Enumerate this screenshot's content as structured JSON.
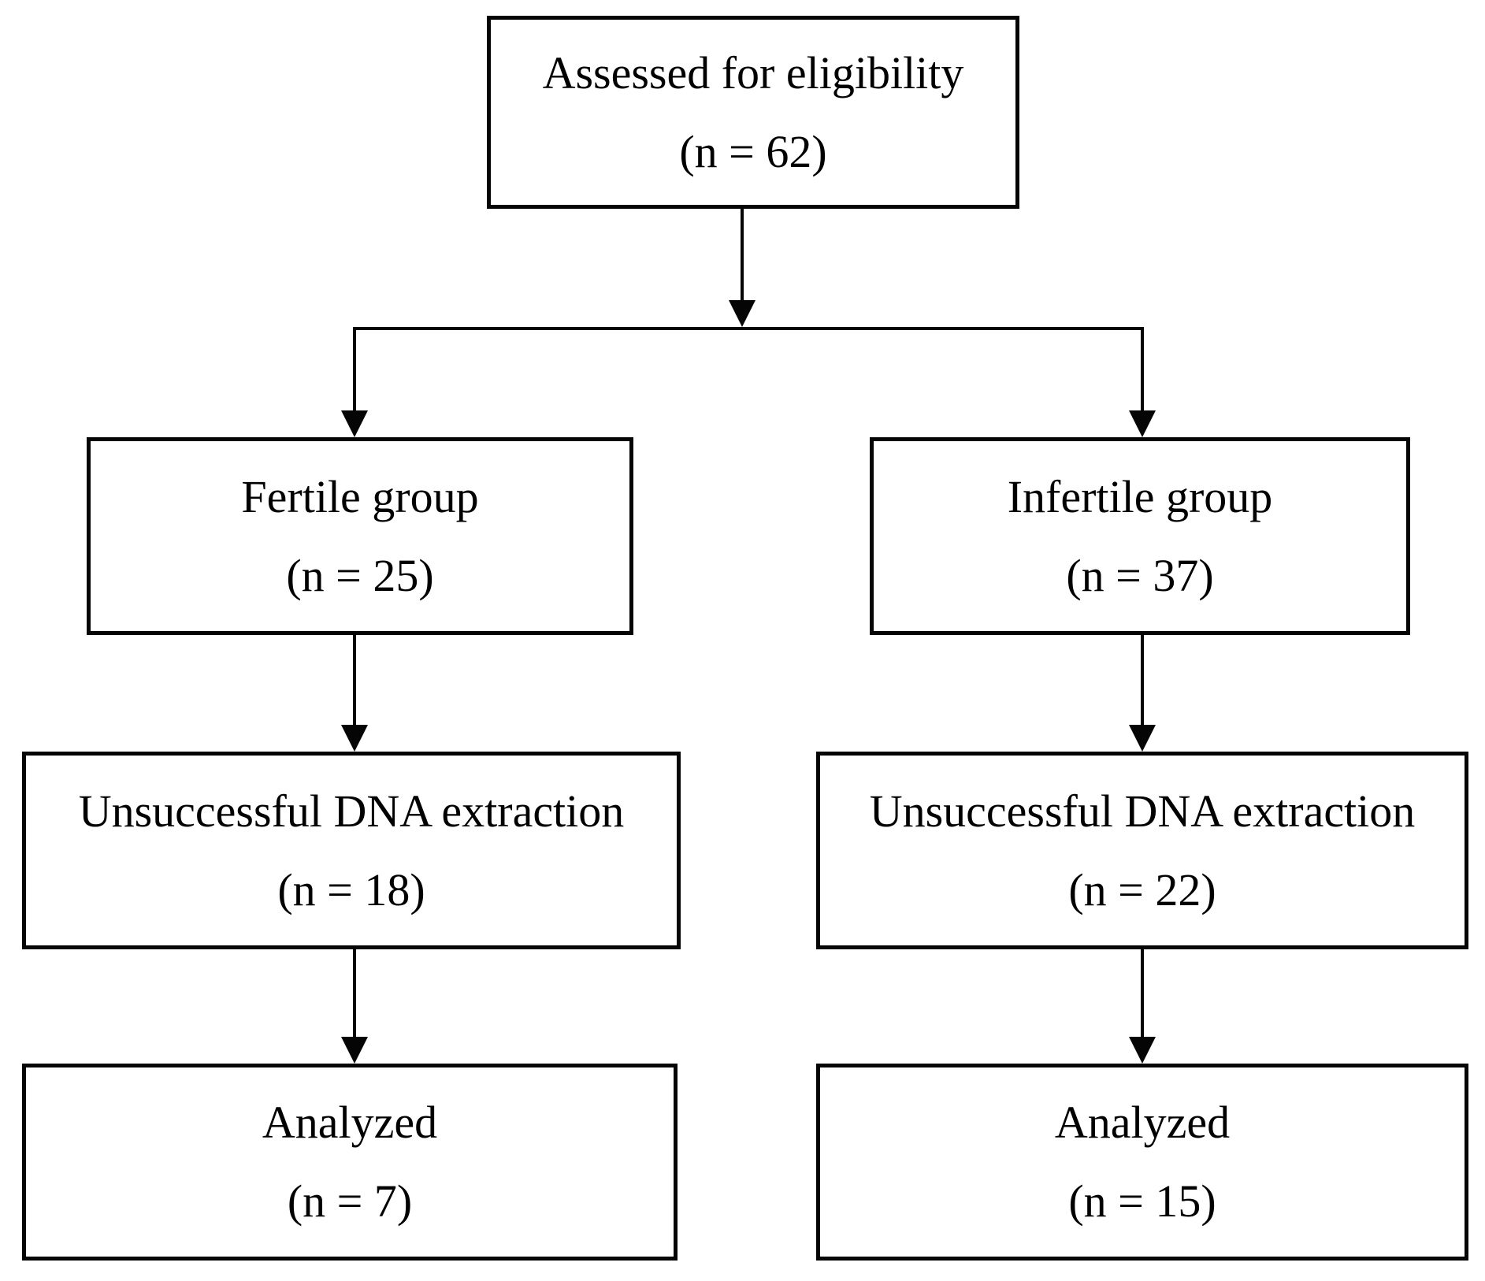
{
  "diagram": {
    "background_color": "#ffffff",
    "line_color": "#000000",
    "text_color": "#000000",
    "nodes": {
      "assessed": {
        "label": "Assessed for eligibility",
        "count": "(n = 62)"
      },
      "fertile": {
        "label": "Fertile group",
        "count": "(n = 25)"
      },
      "infertile": {
        "label": "Infertile group",
        "count": "(n = 37)"
      },
      "fertile_dna": {
        "label": "Unsuccessful DNA extraction",
        "count": "(n = 18)"
      },
      "infertile_dna": {
        "label": "Unsuccessful DNA extraction",
        "count": "(n = 22)"
      },
      "fertile_analyzed": {
        "label": "Analyzed",
        "count": "(n = 7)"
      },
      "infertile_analyzed": {
        "label": "Analyzed",
        "count": "(n = 15)"
      }
    },
    "edges": [
      {
        "from": "assessed",
        "to": "fertile"
      },
      {
        "from": "assessed",
        "to": "infertile"
      },
      {
        "from": "fertile",
        "to": "fertile_dna"
      },
      {
        "from": "infertile",
        "to": "infertile_dna"
      },
      {
        "from": "fertile_dna",
        "to": "fertile_analyzed"
      },
      {
        "from": "infertile_dna",
        "to": "infertile_analyzed"
      }
    ]
  }
}
